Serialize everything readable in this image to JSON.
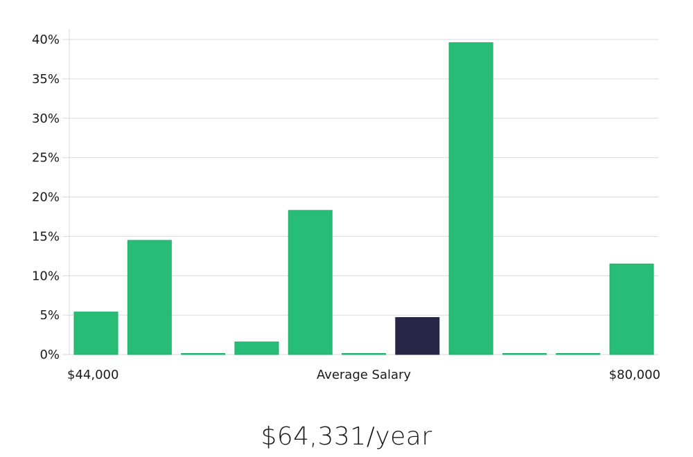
{
  "chart_data": {
    "type": "bar",
    "y_tick_labels": [
      "0%",
      "5%",
      "10%",
      "15%",
      "20%",
      "25%",
      "30%",
      "35%",
      "40%"
    ],
    "ylim": [
      0,
      40
    ],
    "grid": true,
    "values": [
      5.4,
      14.5,
      0.1,
      1.6,
      18.3,
      0.1,
      4.7,
      39.6,
      0.1,
      0.1,
      11.5
    ],
    "highlight_index": 6,
    "x_left_label": "$44,000",
    "x_center_label": "Average Salary",
    "x_right_label": "$80,000",
    "colors": {
      "bar": "#28bd77",
      "bar_border": "#1fae6a",
      "highlight": "#282646",
      "grid": "#d9d9d9"
    }
  },
  "headline": "$64,331/year"
}
